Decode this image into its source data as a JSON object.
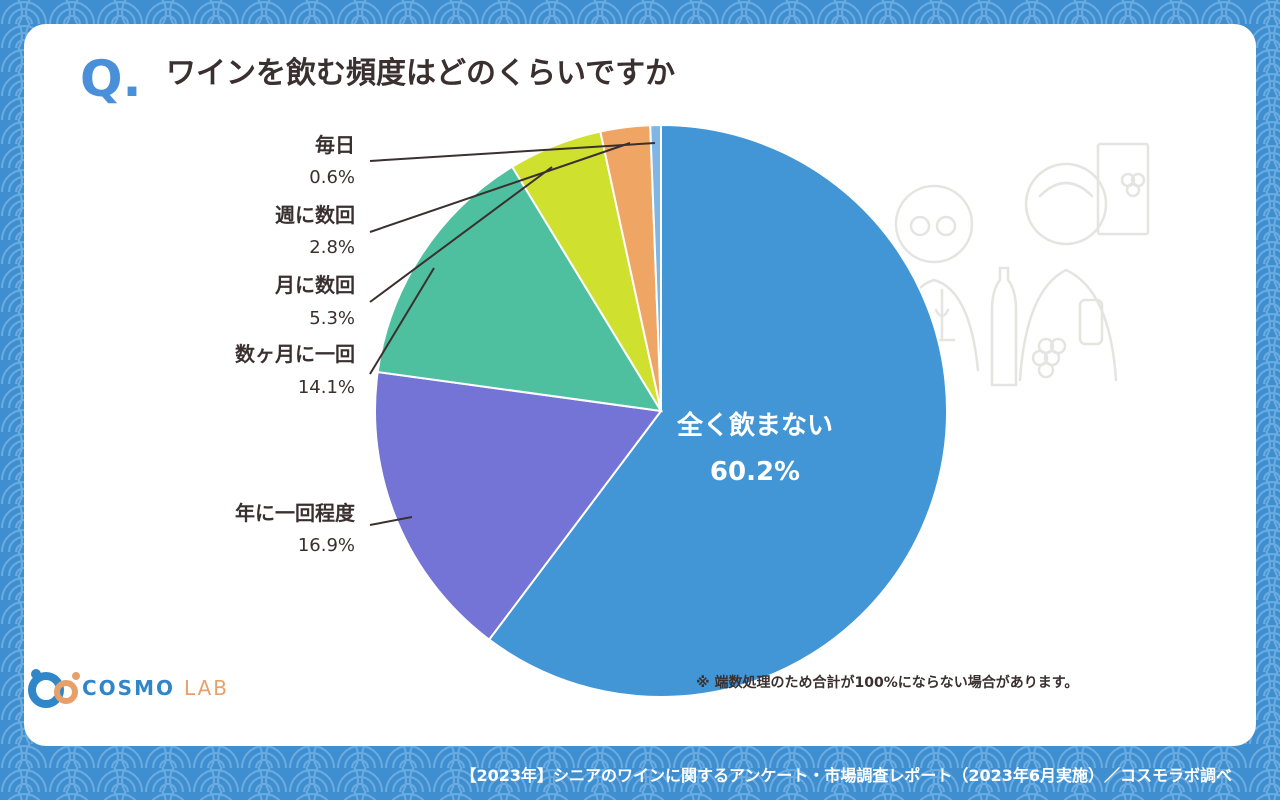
{
  "question": {
    "mark": "Q.",
    "text": "ワインを飲む頻度はどのくらいですか"
  },
  "chart_data": {
    "type": "pie",
    "title": "ワインを飲む頻度はどのくらいですか",
    "unit": "%",
    "slices": [
      {
        "label": "全く飲まない",
        "value": 60.2,
        "display": "60.2%",
        "color": "#4396d5",
        "label_style": "inside"
      },
      {
        "label": "年に一回程度",
        "value": 16.9,
        "display": "16.9%",
        "color": "#7374d6",
        "label_style": "outside"
      },
      {
        "label": "数ヶ月に一回",
        "value": 14.1,
        "display": "14.1%",
        "color": "#4fc09f",
        "label_style": "outside"
      },
      {
        "label": "月に数回",
        "value": 5.3,
        "display": "5.3%",
        "color": "#cfe02f",
        "label_style": "outside"
      },
      {
        "label": "週に数回",
        "value": 2.8,
        "display": "2.8%",
        "color": "#efa564",
        "label_style": "outside"
      },
      {
        "label": "毎日",
        "value": 0.6,
        "display": "0.6%",
        "color": "#7fb6e4",
        "label_style": "outside"
      }
    ],
    "start": "12 o'clock",
    "direction": "clockwise",
    "legend": "none"
  },
  "note": "※ 端数処理のため合計が100%にならない場合があります。",
  "logo": {
    "word1": "COSMO",
    "word2": "LAB"
  },
  "footer": "【2023年】シニアのワインに関するアンケート・市場調査レポート（2023年6月実施）／コスモラボ調べ",
  "colors": {
    "background": "#3f8fd0",
    "card": "#ffffff",
    "text": "#3a3030",
    "accent": "#4a90d9"
  }
}
